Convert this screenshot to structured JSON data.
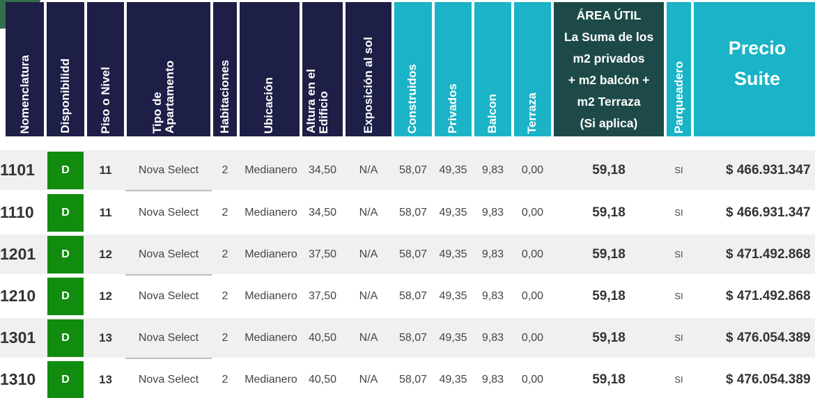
{
  "headers": {
    "nomenclatura": "Nomenclatura",
    "disponibilidad": "Disponibilidd",
    "piso": "Piso o Nivel",
    "tipo_1": "Tipo de",
    "tipo_2": "Apartamento",
    "habitaciones": "Habitaciones",
    "ubicacion": "Ubicación",
    "altura_1": "Altura en el",
    "altura_2": "Edificio",
    "exposicion": "Exposición al sol",
    "construidos": "Construidos",
    "privados": "Privados",
    "balcon": "Balcon",
    "terraza": "Terraza",
    "area_1": "ÁREA ÚTIL",
    "area_2": "La Suma de los",
    "area_3": "m2 privados",
    "area_4": "+ m2 balcón +",
    "area_5": "m2 Terraza",
    "area_6": "(Si aplica)",
    "parqueadero": "Parqueadero",
    "precio_1": "Precio",
    "precio_2": "Suite"
  },
  "colors": {
    "header_navy": "#1e1f47",
    "header_teal": "#1ab3c7",
    "header_dark_teal": "#1d4a48",
    "availability_green": "#118c0f"
  },
  "rows": [
    {
      "nomenclatura": "1101",
      "disponibilidad": "D",
      "piso": "11",
      "tipo": "Nova Select",
      "habitaciones": "2",
      "ubicacion": "Medianero",
      "altura": "34,50",
      "exposicion": "N/A",
      "construidos": "58,07",
      "privados": "49,35",
      "balcon": "9,83",
      "terraza": "0,00",
      "area_util": "59,18",
      "parqueadero": "SI",
      "precio": "$ 466.931.347"
    },
    {
      "nomenclatura": "1110",
      "disponibilidad": "D",
      "piso": "11",
      "tipo": "Nova Select",
      "habitaciones": "2",
      "ubicacion": "Medianero",
      "altura": "34,50",
      "exposicion": "N/A",
      "construidos": "58,07",
      "privados": "49,35",
      "balcon": "9,83",
      "terraza": "0,00",
      "area_util": "59,18",
      "parqueadero": "SI",
      "precio": "$ 466.931.347"
    },
    {
      "nomenclatura": "1201",
      "disponibilidad": "D",
      "piso": "12",
      "tipo": "Nova Select",
      "habitaciones": "2",
      "ubicacion": "Medianero",
      "altura": "37,50",
      "exposicion": "N/A",
      "construidos": "58,07",
      "privados": "49,35",
      "balcon": "9,83",
      "terraza": "0,00",
      "area_util": "59,18",
      "parqueadero": "SI",
      "precio": "$ 471.492.868"
    },
    {
      "nomenclatura": "1210",
      "disponibilidad": "D",
      "piso": "12",
      "tipo": "Nova Select",
      "habitaciones": "2",
      "ubicacion": "Medianero",
      "altura": "37,50",
      "exposicion": "N/A",
      "construidos": "58,07",
      "privados": "49,35",
      "balcon": "9,83",
      "terraza": "0,00",
      "area_util": "59,18",
      "parqueadero": "SI",
      "precio": "$ 471.492.868"
    },
    {
      "nomenclatura": "1301",
      "disponibilidad": "D",
      "piso": "13",
      "tipo": "Nova Select",
      "habitaciones": "2",
      "ubicacion": "Medianero",
      "altura": "40,50",
      "exposicion": "N/A",
      "construidos": "58,07",
      "privados": "49,35",
      "balcon": "9,83",
      "terraza": "0,00",
      "area_util": "59,18",
      "parqueadero": "SI",
      "precio": "$ 476.054.389"
    },
    {
      "nomenclatura": "1310",
      "disponibilidad": "D",
      "piso": "13",
      "tipo": "Nova Select",
      "habitaciones": "2",
      "ubicacion": "Medianero",
      "altura": "40,50",
      "exposicion": "N/A",
      "construidos": "58,07",
      "privados": "49,35",
      "balcon": "9,83",
      "terraza": "0,00",
      "area_util": "59,18",
      "parqueadero": "SI",
      "precio": "$ 476.054.389"
    }
  ]
}
